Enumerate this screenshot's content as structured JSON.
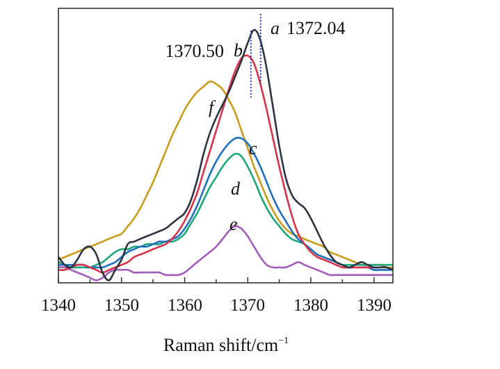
{
  "chart_data": {
    "type": "line",
    "title": "",
    "xlabel": "Raman shift/cm",
    "xlabel_superscript": "−1",
    "ylabel": "",
    "xlim": [
      1340,
      1393
    ],
    "ylim": [
      0,
      1
    ],
    "x_ticks": [
      1340,
      1350,
      1360,
      1370,
      1380,
      1390
    ],
    "tick_labels": [
      "1340",
      "1350",
      "1360",
      "1370",
      "1380",
      "1390"
    ],
    "x": [
      1340,
      1341,
      1342,
      1343,
      1344,
      1345,
      1346,
      1347,
      1348,
      1349,
      1350,
      1351,
      1352,
      1353,
      1354,
      1355,
      1356,
      1357,
      1358,
      1359,
      1360,
      1361,
      1362,
      1363,
      1364,
      1365,
      1366,
      1367,
      1368,
      1369,
      1370,
      1371,
      1372,
      1373,
      1374,
      1375,
      1376,
      1377,
      1378,
      1379,
      1380,
      1381,
      1382,
      1383,
      1384,
      1385,
      1386,
      1387,
      1388,
      1389,
      1390,
      1391,
      1392,
      1393
    ],
    "series": [
      {
        "name": "a",
        "color": "#2b3340",
        "values": [
          0.102,
          0.071,
          0.061,
          0.092,
          0.133,
          0.143,
          0.113,
          0.04,
          0.01,
          0.051,
          0.092,
          0.153,
          0.163,
          0.174,
          0.184,
          0.194,
          0.204,
          0.215,
          0.235,
          0.255,
          0.276,
          0.327,
          0.408,
          0.51,
          0.592,
          0.653,
          0.704,
          0.755,
          0.816,
          0.878,
          0.949,
          1.0,
          0.959,
          0.847,
          0.694,
          0.541,
          0.418,
          0.347,
          0.316,
          0.296,
          0.255,
          0.204,
          0.153,
          0.112,
          0.082,
          0.071,
          0.061,
          0.071,
          0.082,
          0.071,
          0.061,
          0.061,
          0.061,
          0.051
        ]
      },
      {
        "name": "b",
        "color": "#d83148",
        "values": [
          0.051,
          0.051,
          0.061,
          0.071,
          0.071,
          0.061,
          0.051,
          0.04,
          0.051,
          0.061,
          0.071,
          0.082,
          0.102,
          0.112,
          0.122,
          0.133,
          0.143,
          0.153,
          0.174,
          0.204,
          0.245,
          0.296,
          0.357,
          0.439,
          0.52,
          0.602,
          0.684,
          0.765,
          0.837,
          0.888,
          0.898,
          0.867,
          0.786,
          0.684,
          0.571,
          0.459,
          0.357,
          0.265,
          0.194,
          0.153,
          0.122,
          0.102,
          0.092,
          0.082,
          0.071,
          0.061,
          0.061,
          0.061,
          0.061,
          0.061,
          0.061,
          0.061,
          0.061,
          0.051
        ]
      },
      {
        "name": "f",
        "color": "#c99b1a",
        "values": [
          0.092,
          0.102,
          0.112,
          0.122,
          0.133,
          0.143,
          0.153,
          0.163,
          0.174,
          0.184,
          0.194,
          0.224,
          0.255,
          0.296,
          0.347,
          0.398,
          0.459,
          0.52,
          0.582,
          0.633,
          0.684,
          0.724,
          0.755,
          0.776,
          0.796,
          0.786,
          0.765,
          0.724,
          0.673,
          0.602,
          0.531,
          0.459,
          0.398,
          0.337,
          0.286,
          0.245,
          0.214,
          0.194,
          0.184,
          0.173,
          0.163,
          0.153,
          0.143,
          0.122,
          0.112,
          0.102,
          0.092,
          0.082,
          0.071,
          0.071,
          0.071,
          0.071,
          0.061,
          0.061
        ]
      },
      {
        "name": "c",
        "color": "#1d6fbe",
        "values": [
          0.071,
          0.071,
          0.071,
          0.071,
          0.071,
          0.061,
          0.061,
          0.061,
          0.071,
          0.082,
          0.102,
          0.122,
          0.133,
          0.143,
          0.143,
          0.153,
          0.163,
          0.163,
          0.173,
          0.184,
          0.214,
          0.255,
          0.306,
          0.367,
          0.429,
          0.48,
          0.52,
          0.551,
          0.571,
          0.571,
          0.551,
          0.51,
          0.459,
          0.398,
          0.337,
          0.286,
          0.245,
          0.204,
          0.173,
          0.153,
          0.133,
          0.112,
          0.102,
          0.092,
          0.082,
          0.071,
          0.061,
          0.061,
          0.061,
          0.061,
          0.051,
          0.051,
          0.051,
          0.051
        ]
      },
      {
        "name": "d",
        "color": "#19a67a",
        "values": [
          0.082,
          0.071,
          0.061,
          0.061,
          0.061,
          0.061,
          0.071,
          0.082,
          0.102,
          0.122,
          0.133,
          0.133,
          0.143,
          0.143,
          0.153,
          0.153,
          0.153,
          0.163,
          0.163,
          0.173,
          0.194,
          0.235,
          0.276,
          0.327,
          0.378,
          0.418,
          0.459,
          0.49,
          0.51,
          0.5,
          0.459,
          0.408,
          0.347,
          0.296,
          0.255,
          0.224,
          0.194,
          0.173,
          0.163,
          0.153,
          0.133,
          0.112,
          0.102,
          0.092,
          0.082,
          0.071,
          0.071,
          0.071,
          0.071,
          0.071,
          0.071,
          0.071,
          0.071,
          0.071
        ]
      },
      {
        "name": "e",
        "color": "#a05cb8",
        "values": [
          0.061,
          0.061,
          0.051,
          0.041,
          0.031,
          0.02,
          0.01,
          0.02,
          0.041,
          0.051,
          0.051,
          0.051,
          0.041,
          0.041,
          0.041,
          0.041,
          0.041,
          0.031,
          0.031,
          0.031,
          0.041,
          0.061,
          0.082,
          0.102,
          0.122,
          0.143,
          0.173,
          0.204,
          0.224,
          0.214,
          0.184,
          0.143,
          0.102,
          0.071,
          0.061,
          0.061,
          0.061,
          0.071,
          0.082,
          0.071,
          0.061,
          0.051,
          0.041,
          0.031,
          0.031,
          0.031,
          0.031,
          0.031,
          0.031,
          0.031,
          0.031,
          0.031,
          0.031,
          0.031
        ]
      }
    ],
    "peak_markers": [
      {
        "x": 1372.04,
        "label": "1372.04",
        "series": "a"
      },
      {
        "x": 1370.5,
        "label": "1370.50",
        "series": "b"
      }
    ],
    "annotations": [
      {
        "text": "a",
        "x": 1374.4,
        "y": 1.01
      },
      {
        "text": "b",
        "x": 1368.8,
        "y": 0.93
      },
      {
        "text": "f",
        "x": 1364.8,
        "y": 0.71
      },
      {
        "text": "c",
        "x": 1370.9,
        "y": 0.53
      },
      {
        "text": "d",
        "x": 1368.8,
        "y": 0.36
      },
      {
        "text": "e",
        "x": 1368.0,
        "y": 0.18
      }
    ],
    "grid": false,
    "legend": "none (curves labeled inline)"
  }
}
